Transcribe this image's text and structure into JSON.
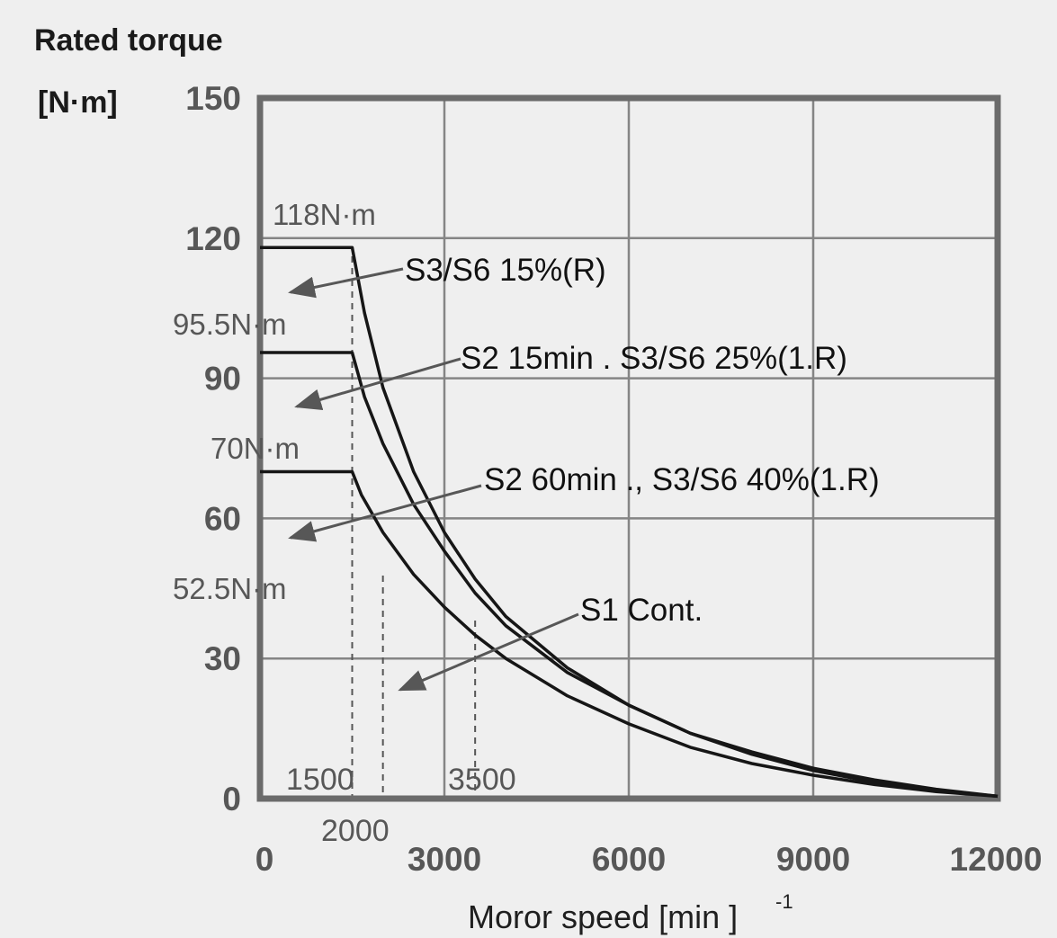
{
  "chart_data": {
    "type": "line",
    "ylabel_line1": "Rated torque",
    "ylabel_line2": "[N·m]",
    "xlabel": "Moror speed [min  ]",
    "xlabel_superscript": "-1",
    "xlim": [
      0,
      12000
    ],
    "ylim": [
      0,
      150
    ],
    "x_ticks": [
      "0",
      "3000",
      "6000",
      "9000",
      "12000"
    ],
    "x_tick_values": [
      0,
      3000,
      6000,
      9000,
      12000
    ],
    "y_ticks": [
      "0",
      "30",
      "60",
      "90",
      "120",
      "150"
    ],
    "y_tick_values": [
      0,
      30,
      60,
      90,
      120,
      150
    ],
    "grid": true,
    "torque_level_labels": [
      {
        "text": "118N·m",
        "value": 118
      },
      {
        "text": "95.5N·m",
        "value": 95.5
      },
      {
        "text": "70N·m",
        "value": 70
      },
      {
        "text": "52.5N·m",
        "value": 52.5
      }
    ],
    "speed_markers": [
      {
        "text": "1500",
        "value": 1500
      },
      {
        "text": "2000",
        "value": 2000
      },
      {
        "text": "3500",
        "value": 3500
      }
    ],
    "series": [
      {
        "name": "S3/S6 15%(R)",
        "x": [
          0,
          1500,
          1700,
          2000,
          2500,
          3000,
          3500,
          4000,
          5000,
          6000,
          7000,
          8000,
          9000,
          10000,
          11000,
          12000
        ],
        "values": [
          118,
          118,
          104,
          88,
          70,
          57,
          47,
          39,
          28,
          20,
          14,
          10,
          6.5,
          4,
          2,
          0.5
        ]
      },
      {
        "name": "S2 15min . S3/S6 25%(1.R)",
        "x": [
          0,
          1500,
          1700,
          2000,
          2500,
          3000,
          3500,
          4000,
          5000,
          6000,
          7000,
          8000,
          9000,
          10000,
          11000,
          12000
        ],
        "values": [
          95.5,
          95.5,
          86,
          76,
          63,
          53,
          44,
          37,
          27,
          20,
          14,
          9.5,
          6,
          3.5,
          1.8,
          0.5
        ]
      },
      {
        "name": "S2 60min ., S3/S6 40%(1.R)",
        "x": [
          0,
          1500,
          1650,
          2000,
          2500,
          3000,
          3500,
          4000,
          5000,
          6000,
          7000,
          8000,
          9000,
          10000,
          11000,
          12000
        ],
        "values": [
          70,
          70,
          65,
          57,
          48,
          41,
          35,
          30,
          22,
          16,
          11,
          7.5,
          5,
          3,
          1.5,
          0.5
        ]
      },
      {
        "name": "S1 Cont.",
        "x": [],
        "values": []
      }
    ]
  }
}
